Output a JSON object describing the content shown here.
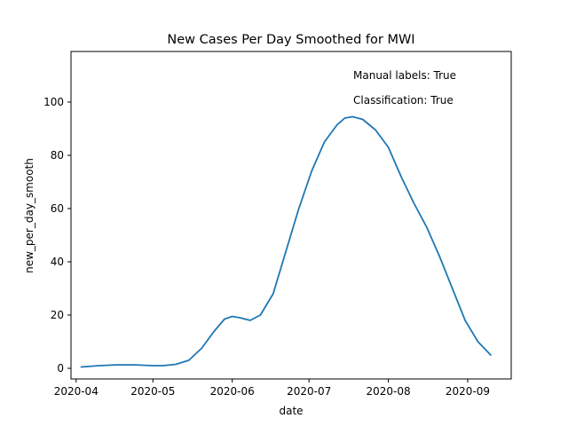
{
  "chart_data": {
    "type": "line",
    "title": "New Cases Per Day Smoothed for MWI",
    "xlabel": "date",
    "ylabel": "new_per_day_smooth",
    "xlim": [
      "2020-03-30",
      "2020-09-18"
    ],
    "ylim": [
      -4,
      119
    ],
    "x_ticks": [
      "2020-04",
      "2020-05",
      "2020-06",
      "2020-07",
      "2020-08",
      "2020-09"
    ],
    "y_ticks": [
      0,
      20,
      40,
      60,
      80,
      100
    ],
    "grid": false,
    "annotations": [
      "Manual labels: True",
      "Classification: True"
    ],
    "series": [
      {
        "color": "#1f77b4",
        "x": [
          "2020-04-03",
          "2020-04-10",
          "2020-04-17",
          "2020-04-24",
          "2020-05-01",
          "2020-05-05",
          "2020-05-10",
          "2020-05-15",
          "2020-05-20",
          "2020-05-25",
          "2020-05-29",
          "2020-06-01",
          "2020-06-04",
          "2020-06-08",
          "2020-06-12",
          "2020-06-17",
          "2020-06-22",
          "2020-06-27",
          "2020-07-02",
          "2020-07-07",
          "2020-07-12",
          "2020-07-15",
          "2020-07-18",
          "2020-07-22",
          "2020-07-27",
          "2020-08-01",
          "2020-08-06",
          "2020-08-11",
          "2020-08-16",
          "2020-08-21",
          "2020-08-26",
          "2020-08-31",
          "2020-09-05",
          "2020-09-10"
        ],
        "y": [
          0.5,
          1.0,
          1.3,
          1.3,
          1.0,
          1.0,
          1.5,
          3.0,
          7.5,
          14.0,
          18.5,
          19.5,
          19.0,
          18.0,
          20.0,
          28.0,
          44.0,
          60.0,
          74.0,
          85.0,
          91.5,
          94.0,
          94.5,
          93.5,
          89.5,
          83.0,
          72.0,
          62.0,
          53.0,
          42.0,
          30.0,
          18.0,
          10.0,
          5.0
        ]
      }
    ]
  }
}
